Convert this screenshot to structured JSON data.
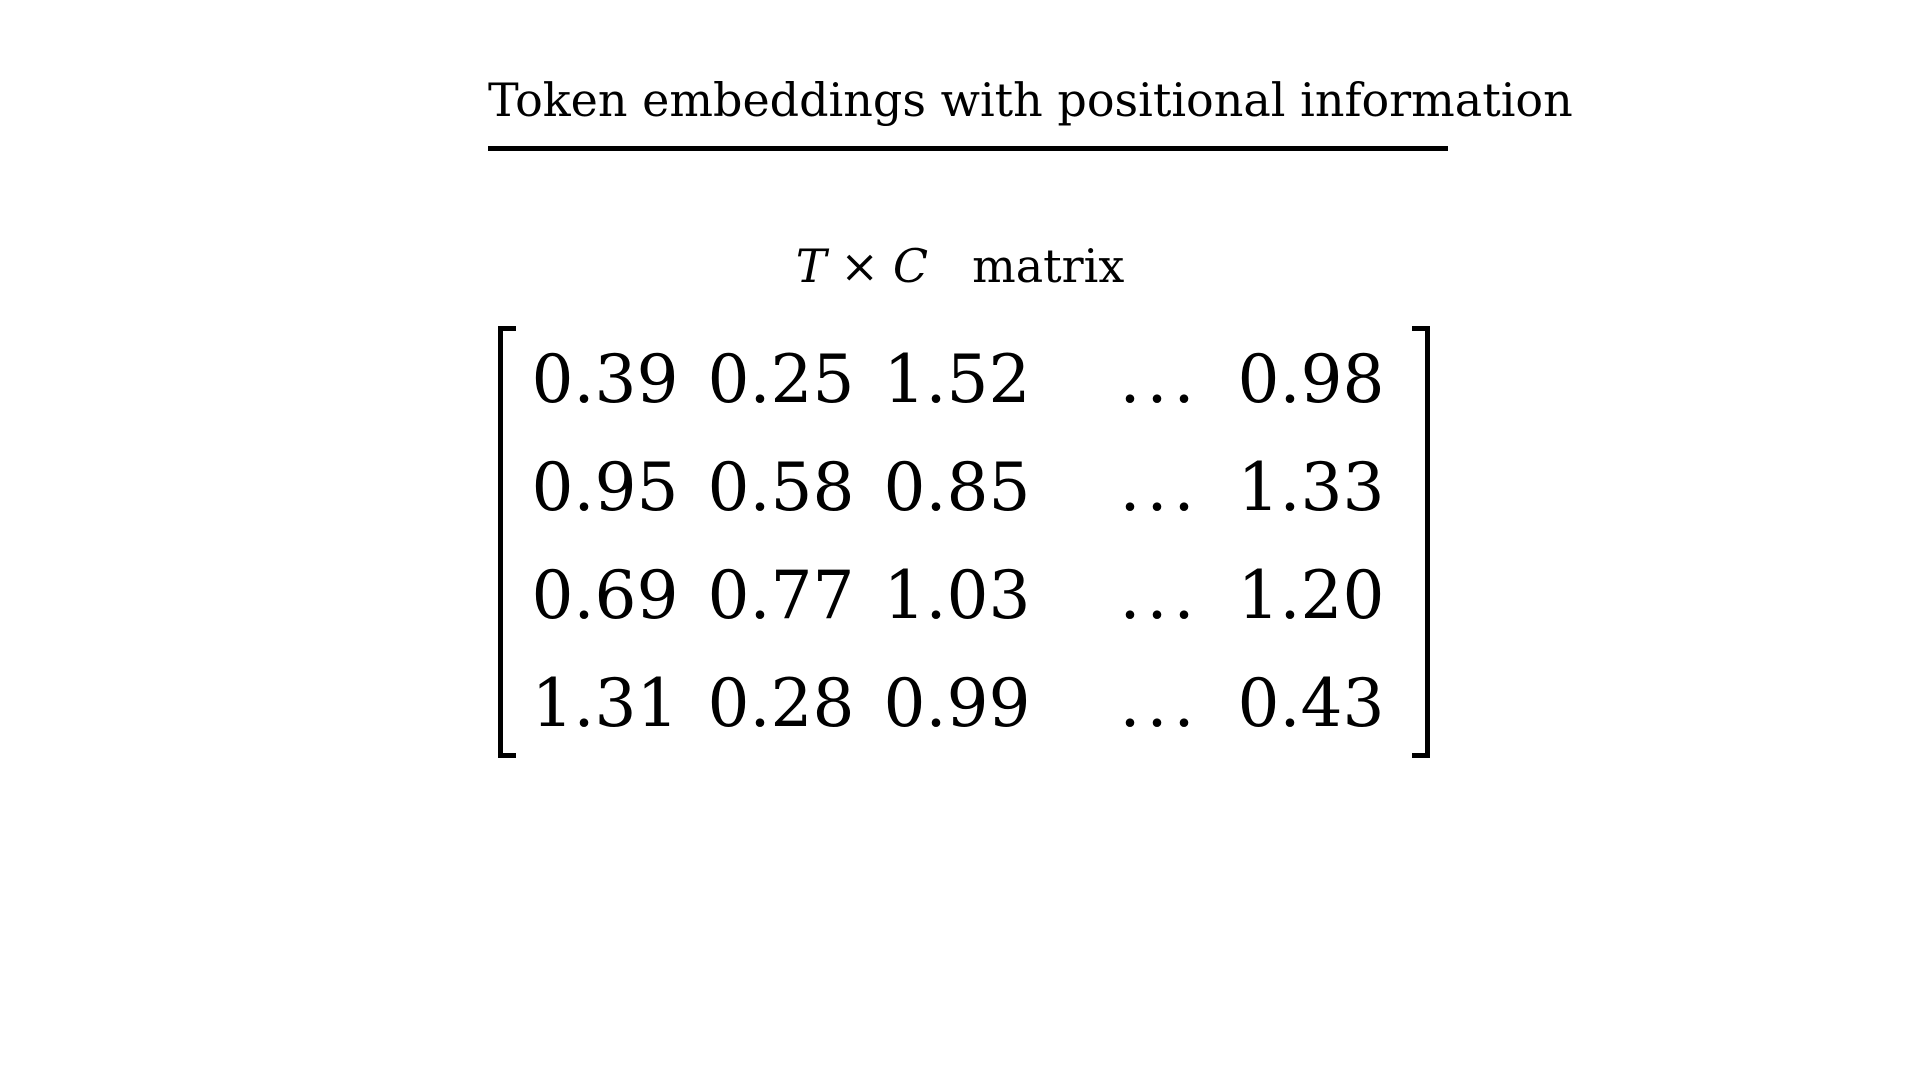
{
  "title": "Token embeddings with positional information",
  "dimension_label": {
    "rows_symbol": "T",
    "times_symbol": "×",
    "cols_symbol": "C",
    "word": "matrix"
  },
  "matrix": {
    "rows": [
      [
        "0.39",
        "0.25",
        "1.52",
        "...",
        "0.98"
      ],
      [
        "0.95",
        "0.58",
        "0.85",
        "...",
        "1.33"
      ],
      [
        "0.69",
        "0.77",
        "1.03",
        "...",
        "1.20"
      ],
      [
        "1.31",
        "0.28",
        "0.99",
        "...",
        "0.43"
      ]
    ]
  }
}
